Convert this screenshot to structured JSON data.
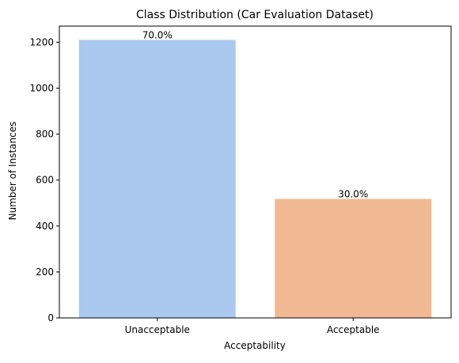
{
  "chart_data": {
    "type": "bar",
    "title": "Class Distribution (Car Evaluation Dataset)",
    "xlabel": "Acceptability",
    "ylabel": "Number of Instances",
    "categories": [
      "Unacceptable",
      "Acceptable"
    ],
    "values": [
      1210,
      518
    ],
    "data_labels": [
      "70.0%",
      "30.0%"
    ],
    "colors": [
      "#abc9ee",
      "#f1b993"
    ],
    "ylim": [
      0,
      1270
    ],
    "yticks": [
      0,
      200,
      400,
      600,
      800,
      1000,
      1200
    ],
    "grid": false,
    "legend": "none"
  }
}
